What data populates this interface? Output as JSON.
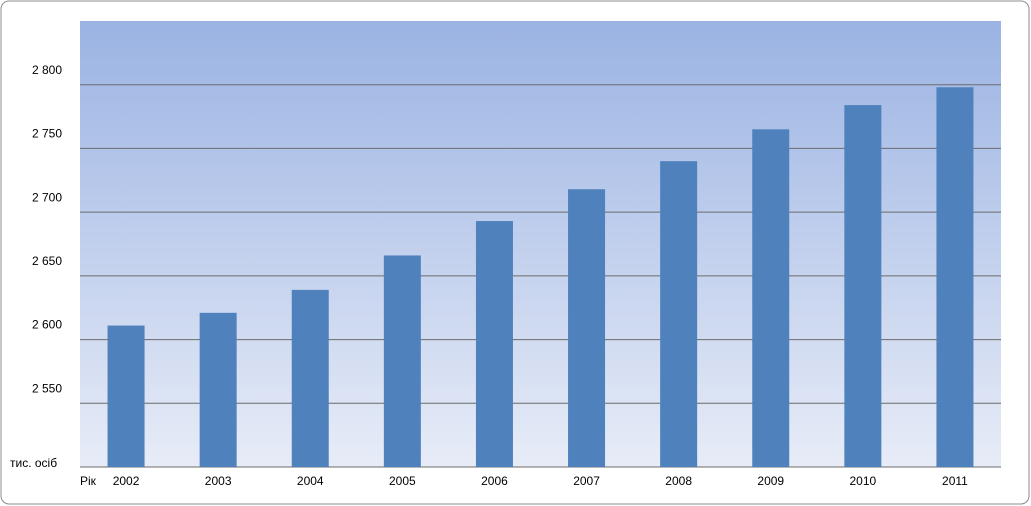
{
  "chart_data": {
    "type": "bar",
    "x_label": "Рік",
    "y_label": "тис. осіб",
    "categories": [
      "2002",
      "2003",
      "2004",
      "2005",
      "2006",
      "2007",
      "2008",
      "2009",
      "2010",
      "2011"
    ],
    "values": [
      2611,
      2621,
      2639,
      2666,
      2693,
      2718,
      2740,
      2765,
      2784,
      2798
    ],
    "color": "#4f81bd",
    "ylim": [
      2500,
      2850
    ],
    "yticks": [
      {
        "value": 2550,
        "label": "2 550"
      },
      {
        "value": 2600,
        "label": "2 600"
      },
      {
        "value": 2650,
        "label": "2 650"
      },
      {
        "value": 2700,
        "label": "2 700"
      },
      {
        "value": 2750,
        "label": "2 750"
      },
      {
        "value": 2800,
        "label": "2 800"
      }
    ],
    "grid": true
  }
}
